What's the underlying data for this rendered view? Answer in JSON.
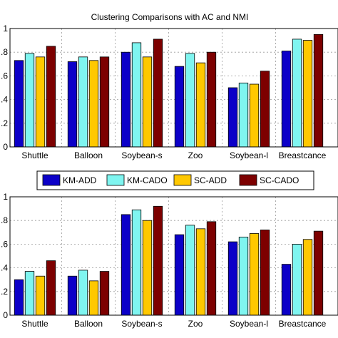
{
  "legend": {
    "colors": [
      "#0c00c8",
      "#7ff5f0",
      "#ffc800",
      "#7d0000"
    ]
  },
  "chart_data": [
    {
      "type": "bar",
      "title": "Clustering Comparisons with AC and NMI",
      "categories": [
        "Shuttle",
        "Balloon",
        "Soybean-s",
        "Zoo",
        "Soybean-l",
        "Breastcancer"
      ],
      "categories_visible": [
        "Shuttle",
        "Balloon",
        "Soybean-s",
        "Zoo",
        "Soybean-l",
        "Breastcance"
      ],
      "ylim": [
        0,
        1
      ],
      "yticks": [
        "0",
        ".2",
        ".4",
        ".6",
        ".8",
        "1"
      ],
      "grid": true,
      "series": [
        {
          "name": "KM-ADD",
          "values": [
            0.73,
            0.72,
            0.8,
            0.68,
            0.5,
            0.81
          ]
        },
        {
          "name": "KM-CADO",
          "values": [
            0.79,
            0.76,
            0.88,
            0.79,
            0.54,
            0.91
          ]
        },
        {
          "name": "SC-ADD",
          "values": [
            0.76,
            0.73,
            0.76,
            0.71,
            0.53,
            0.9
          ]
        },
        {
          "name": "SC-CADO",
          "values": [
            0.85,
            0.76,
            0.91,
            0.8,
            0.64,
            0.95
          ]
        }
      ]
    },
    {
      "type": "bar",
      "title": "",
      "categories": [
        "Shuttle",
        "Balloon",
        "Soybean-s",
        "Zoo",
        "Soybean-l",
        "Breastcancer"
      ],
      "categories_visible": [
        "Shuttle",
        "Balloon",
        "Soybean-s",
        "Zoo",
        "Soybean-l",
        "Breastcance"
      ],
      "ylim": [
        0,
        1
      ],
      "yticks": [
        "0",
        ".2",
        ".4",
        ".6",
        ".8",
        "1"
      ],
      "grid": true,
      "legend_position": "top",
      "series": [
        {
          "name": "KM-ADD",
          "values": [
            0.3,
            0.33,
            0.85,
            0.68,
            0.62,
            0.43
          ]
        },
        {
          "name": "KM-CADO",
          "values": [
            0.37,
            0.38,
            0.89,
            0.76,
            0.66,
            0.6
          ]
        },
        {
          "name": "SC-ADD",
          "values": [
            0.33,
            0.29,
            0.8,
            0.73,
            0.69,
            0.64
          ]
        },
        {
          "name": "SC-CADO",
          "values": [
            0.46,
            0.37,
            0.92,
            0.79,
            0.72,
            0.71
          ]
        }
      ]
    }
  ]
}
